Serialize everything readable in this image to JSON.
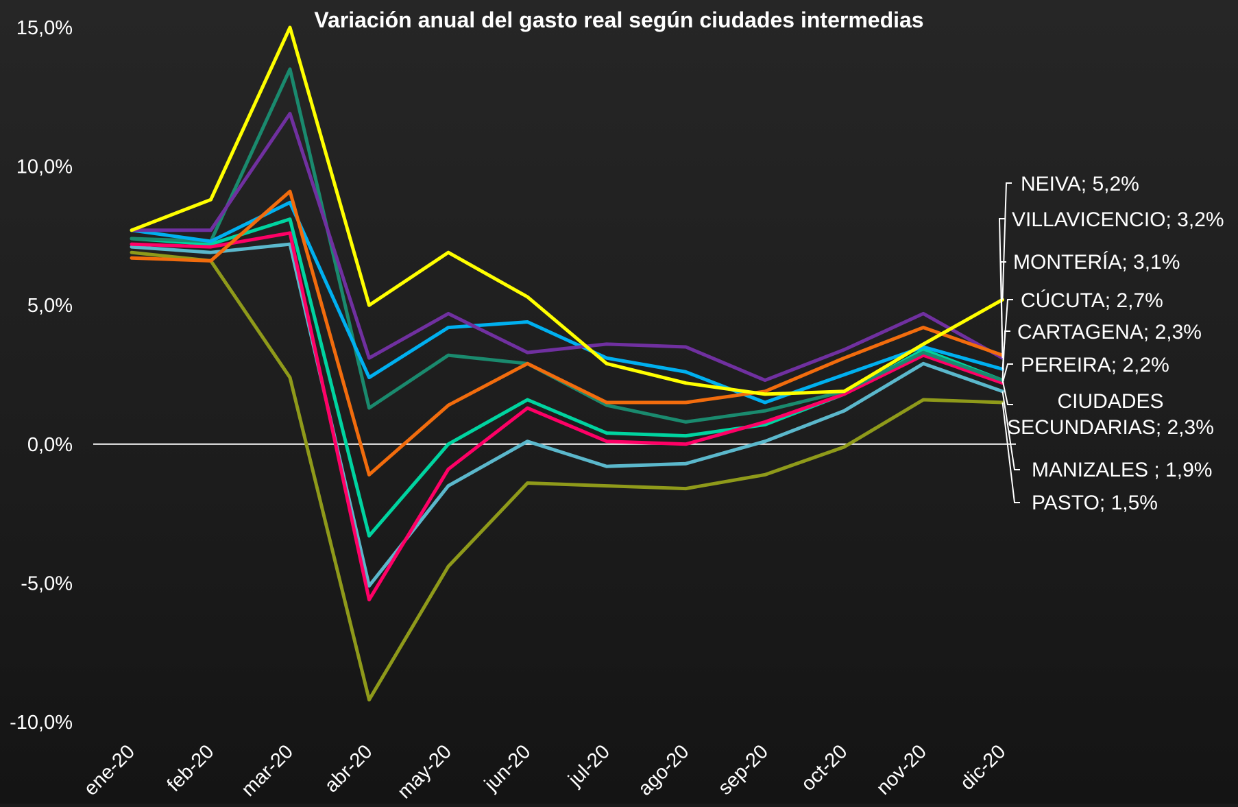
{
  "chart_data": {
    "type": "line",
    "title": "Variación anual del gasto real según ciudades intermedias",
    "xlabel": "",
    "ylabel": "",
    "categories": [
      "ene-20",
      "feb-20",
      "mar-20",
      "abr-20",
      "may-20",
      "jun-20",
      "jul-20",
      "ago-20",
      "sep-20",
      "oct-20",
      "nov-20",
      "dic-20"
    ],
    "ylim": [
      -10,
      15
    ],
    "yticks": [
      "-10,0%",
      "-5,0%",
      "0,0%",
      "5,0%",
      "10,0%",
      "15,0%"
    ],
    "grid": false,
    "series": [
      {
        "name": "NEIVA",
        "end_label": "NEIVA; 5,2%",
        "color": "#ffff00",
        "values": [
          7.7,
          8.8,
          15.0,
          5.0,
          6.9,
          5.3,
          2.9,
          2.2,
          1.8,
          1.9,
          3.6,
          5.2
        ]
      },
      {
        "name": "VILLAVICENCIO",
        "end_label": "VILLAVICENCIO; 3,2%",
        "color": "#f26c0d",
        "values": [
          6.7,
          6.6,
          9.1,
          -1.1,
          1.4,
          2.9,
          1.5,
          1.5,
          1.9,
          3.1,
          4.2,
          3.2
        ]
      },
      {
        "name": "MONTERÍA",
        "end_label": "MONTERÍA; 3,1%",
        "color": "#7030a0",
        "values": [
          7.7,
          7.7,
          11.9,
          3.1,
          4.7,
          3.3,
          3.6,
          3.5,
          2.3,
          3.4,
          4.7,
          3.1
        ]
      },
      {
        "name": "CÚCUTA",
        "end_label": "CÚCUTA; 2,7%",
        "color": "#00b0f0",
        "values": [
          7.7,
          7.3,
          8.7,
          2.4,
          4.2,
          4.4,
          3.1,
          2.6,
          1.5,
          2.5,
          3.5,
          2.7
        ]
      },
      {
        "name": "CARTAGENA",
        "end_label": "CARTAGENA; 2,3%",
        "color": "#1a8a6e",
        "values": [
          7.4,
          7.3,
          13.5,
          1.3,
          3.2,
          2.9,
          1.4,
          0.8,
          1.2,
          1.9,
          3.3,
          2.3
        ]
      },
      {
        "name": "PEREIRA",
        "end_label": "PEREIRA; 2,2%",
        "color": "#ff0066",
        "values": [
          7.2,
          7.1,
          7.6,
          -5.6,
          -0.9,
          1.3,
          0.1,
          0.0,
          0.8,
          1.8,
          3.2,
          2.2
        ]
      },
      {
        "name": "CIUDADES SECUNDARIAS",
        "end_label": "CIUDADES SECUNDARIAS; 2,3%",
        "color": "#00d4a0",
        "values": [
          7.4,
          7.2,
          8.1,
          -3.3,
          0.0,
          1.6,
          0.4,
          0.3,
          0.7,
          1.8,
          3.4,
          2.3
        ]
      },
      {
        "name": "MANIZALES",
        "end_label": "MANIZALES ; 1,9%",
        "color": "#5bb8cc",
        "values": [
          7.1,
          6.9,
          7.2,
          -5.1,
          -1.5,
          0.1,
          -0.8,
          -0.7,
          0.1,
          1.2,
          2.9,
          1.9
        ]
      },
      {
        "name": "PASTO",
        "end_label": "PASTO; 1,5%",
        "color": "#8f9a1a",
        "values": [
          6.9,
          6.6,
          2.4,
          -9.2,
          -4.4,
          -1.4,
          -1.5,
          -1.6,
          -1.1,
          -0.1,
          1.6,
          1.5
        ]
      }
    ]
  }
}
